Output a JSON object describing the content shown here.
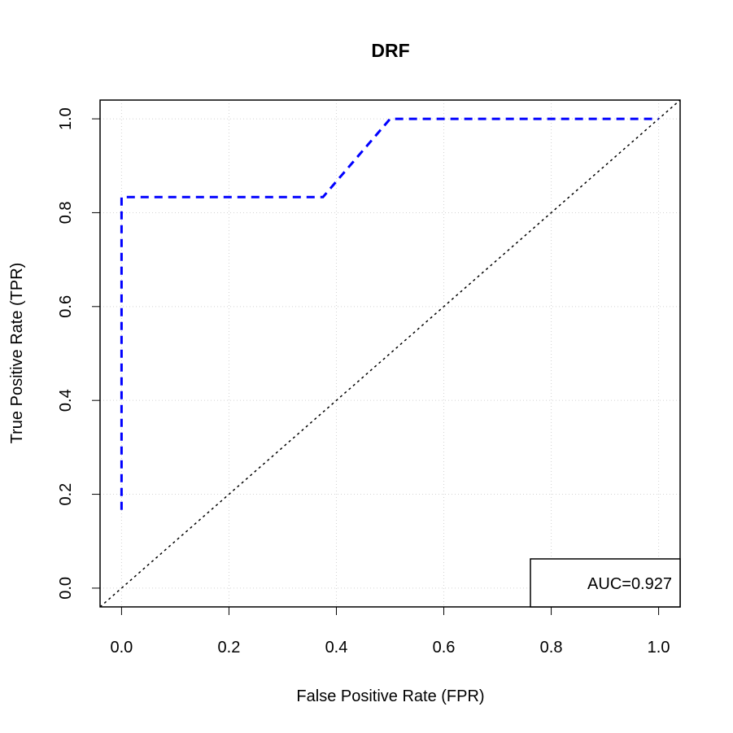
{
  "chart_data": {
    "type": "line",
    "title": "DRF",
    "xlabel": "False Positive Rate (FPR)",
    "ylabel": "True Positive Rate (TPR)",
    "xlim": [
      0,
      1
    ],
    "ylim": [
      0,
      1
    ],
    "xticks": [
      0.0,
      0.2,
      0.4,
      0.6,
      0.8,
      1.0
    ],
    "yticks": [
      0.0,
      0.2,
      0.4,
      0.6,
      0.8,
      1.0
    ],
    "xtick_labels": [
      "0.0",
      "0.2",
      "0.4",
      "0.6",
      "0.8",
      "1.0"
    ],
    "ytick_labels": [
      "0.0",
      "0.2",
      "0.4",
      "0.6",
      "0.8",
      "1.0"
    ],
    "grid": true,
    "series": [
      {
        "color": "#0000ff",
        "style": "dashed",
        "x": [
          0.0,
          0.0,
          0.375,
          0.5,
          1.0
        ],
        "y": [
          0.1667,
          0.8333,
          0.8333,
          1.0,
          1.0
        ]
      }
    ],
    "reference_line": {
      "color": "#000000",
      "style": "dotted",
      "x": [
        -0.04,
        1.04
      ],
      "y": [
        -0.04,
        1.04
      ]
    },
    "legend": {
      "text": "AUC=0.927",
      "placement": "bottom-right"
    }
  }
}
